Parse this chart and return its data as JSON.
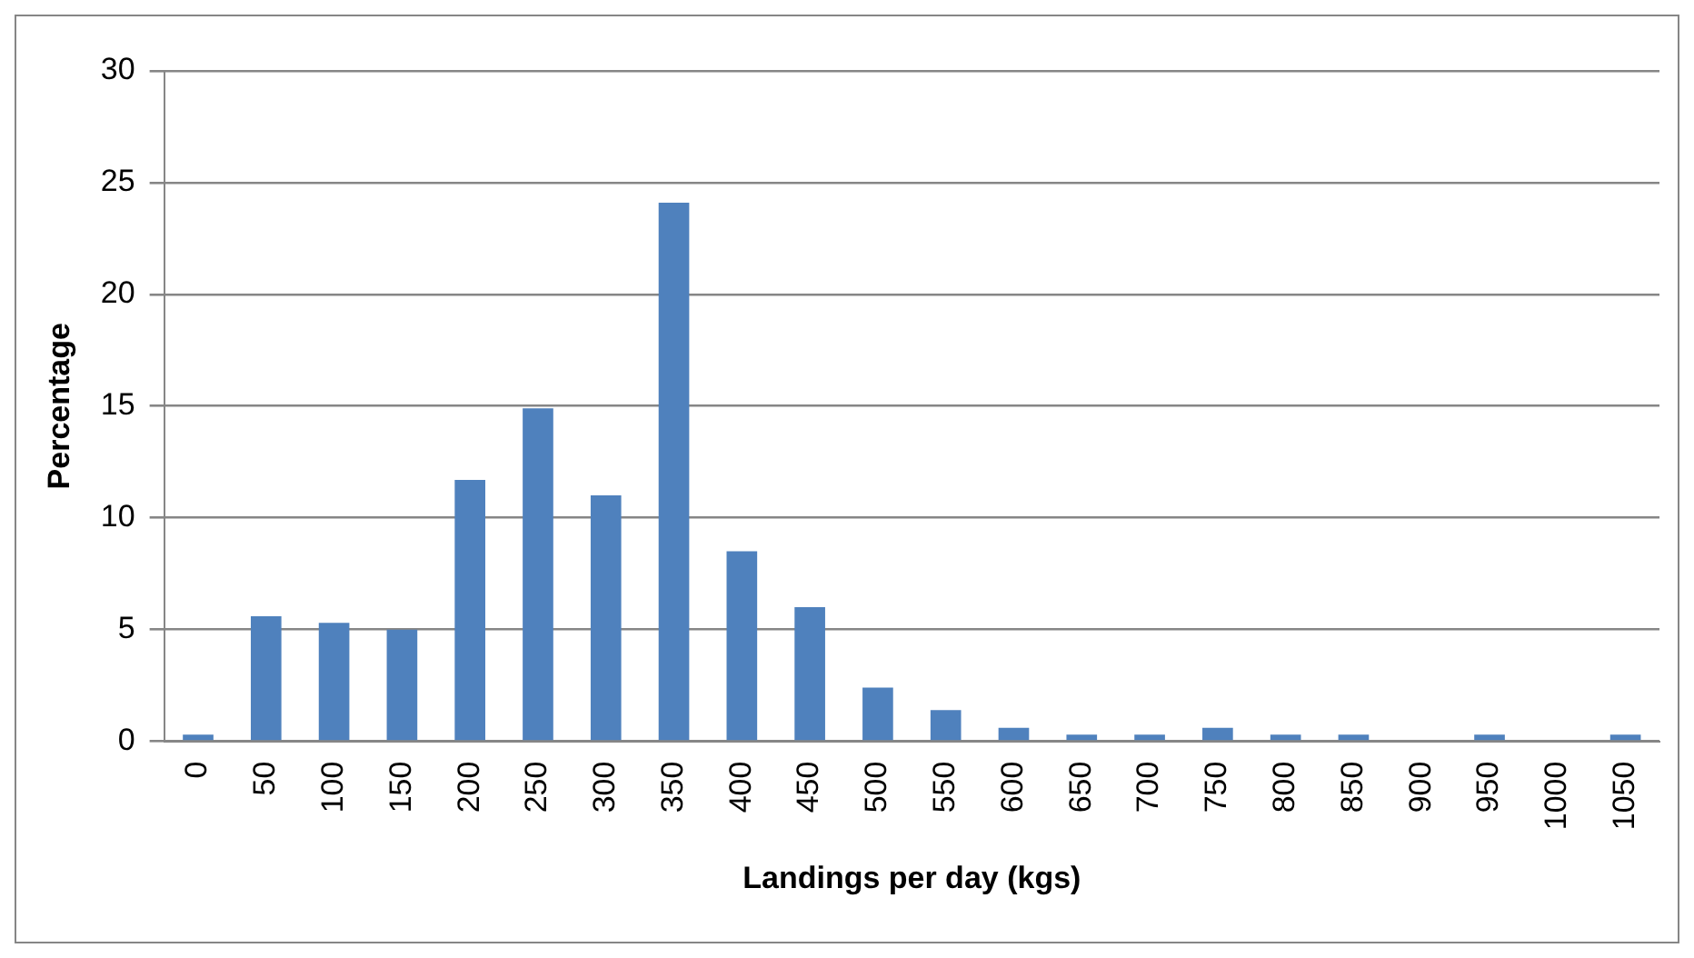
{
  "chart_data": {
    "type": "bar",
    "xlabel": "Landings per day (kgs)",
    "ylabel": "Percentage",
    "categories": [
      "0",
      "50",
      "100",
      "150",
      "200",
      "250",
      "300",
      "350",
      "400",
      "450",
      "500",
      "550",
      "600",
      "650",
      "700",
      "750",
      "800",
      "850",
      "900",
      "950",
      "1000",
      "1050"
    ],
    "values": [
      0.3,
      5.6,
      5.3,
      5.0,
      11.7,
      14.9,
      11.0,
      24.1,
      8.5,
      6.0,
      2.4,
      1.4,
      0.6,
      0.3,
      0.3,
      0.6,
      0.3,
      0.3,
      0,
      0.3,
      0,
      0.3
    ],
    "color": "#4f81bd",
    "ylim": [
      0,
      30
    ],
    "yticks": [
      0,
      5,
      10,
      15,
      20,
      25,
      30
    ],
    "grid": "y",
    "legend": false
  }
}
